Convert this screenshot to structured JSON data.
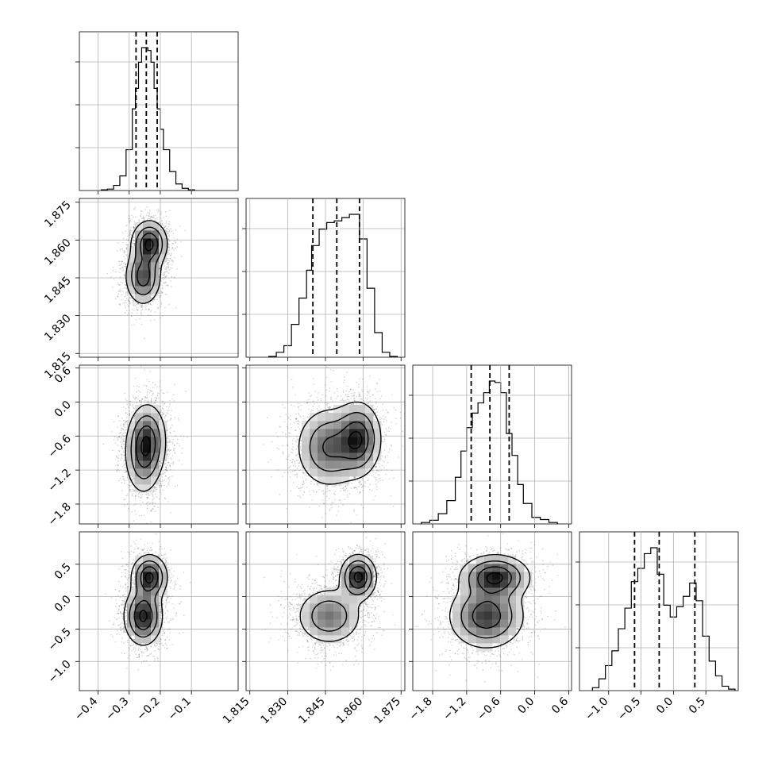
{
  "chart_data": {
    "type": "corner",
    "title": "",
    "grid": true,
    "colors": {
      "points": "#000000",
      "contour_line": "#000000",
      "density_high": "#000000",
      "density_low": "#ffffff"
    },
    "parameters": [
      {
        "name": "",
        "range": [
          -0.46,
          0.05
        ],
        "ticks": [
          -0.4,
          -0.3,
          -0.2,
          -0.1
        ],
        "tick_labels": [
          "−0.4",
          "−0.3",
          "−0.2",
          "−0.1"
        ]
      },
      {
        "name": "",
        "range": [
          1.8135,
          1.8765
        ],
        "ticks": [
          1.815,
          1.83,
          1.845,
          1.86,
          1.875
        ],
        "tick_labels": [
          "1.815",
          "1.830",
          "1.845",
          "1.860",
          "1.875"
        ]
      },
      {
        "name": "",
        "range": [
          -2.15,
          0.65
        ],
        "ticks": [
          -1.8,
          -1.2,
          -0.6,
          0.0,
          0.6
        ],
        "tick_labels": [
          "−1.8",
          "−1.2",
          "−0.6",
          "0.0",
          "0.6"
        ]
      },
      {
        "name": "",
        "range": [
          -1.45,
          1.0
        ],
        "ticks": [
          -1.0,
          -0.5,
          0.0,
          0.5
        ],
        "tick_labels": [
          "−1.0",
          "−0.5",
          "0.0",
          "0.5"
        ]
      }
    ],
    "histograms": [
      {
        "param": 0,
        "quantiles": [
          -0.278,
          -0.245,
          -0.21
        ],
        "bins": [
          {
            "x0": -0.39,
            "x1": -0.37,
            "h": 0.005
          },
          {
            "x0": -0.37,
            "x1": -0.35,
            "h": 0.01
          },
          {
            "x0": -0.35,
            "x1": -0.33,
            "h": 0.035
          },
          {
            "x0": -0.33,
            "x1": -0.31,
            "h": 0.1
          },
          {
            "x0": -0.31,
            "x1": -0.29,
            "h": 0.28
          },
          {
            "x0": -0.29,
            "x1": -0.28,
            "h": 0.56
          },
          {
            "x0": -0.28,
            "x1": -0.27,
            "h": 0.7
          },
          {
            "x0": -0.27,
            "x1": -0.26,
            "h": 0.88
          },
          {
            "x0": -0.26,
            "x1": -0.25,
            "h": 0.98
          },
          {
            "x0": -0.25,
            "x1": -0.24,
            "h": 0.98
          },
          {
            "x0": -0.24,
            "x1": -0.23,
            "h": 0.96
          },
          {
            "x0": -0.23,
            "x1": -0.22,
            "h": 0.88
          },
          {
            "x0": -0.22,
            "x1": -0.21,
            "h": 0.7
          },
          {
            "x0": -0.21,
            "x1": -0.2,
            "h": 0.56
          },
          {
            "x0": -0.2,
            "x1": -0.19,
            "h": 0.42
          },
          {
            "x0": -0.19,
            "x1": -0.17,
            "h": 0.28
          },
          {
            "x0": -0.17,
            "x1": -0.15,
            "h": 0.13
          },
          {
            "x0": -0.15,
            "x1": -0.13,
            "h": 0.045
          },
          {
            "x0": -0.13,
            "x1": -0.11,
            "h": 0.015
          },
          {
            "x0": -0.11,
            "x1": -0.09,
            "h": 0.005
          }
        ]
      },
      {
        "param": 1,
        "quantiles": [
          1.84,
          1.8495,
          1.8585
        ],
        "bins": [
          {
            "x0": 1.8225,
            "x1": 1.8255,
            "h": 0.005
          },
          {
            "x0": 1.8255,
            "x1": 1.8285,
            "h": 0.03
          },
          {
            "x0": 1.8285,
            "x1": 1.8315,
            "h": 0.07
          },
          {
            "x0": 1.8315,
            "x1": 1.8345,
            "h": 0.2
          },
          {
            "x0": 1.8345,
            "x1": 1.8375,
            "h": 0.36
          },
          {
            "x0": 1.8375,
            "x1": 1.8395,
            "h": 0.53
          },
          {
            "x0": 1.8395,
            "x1": 1.8425,
            "h": 0.68
          },
          {
            "x0": 1.8425,
            "x1": 1.8455,
            "h": 0.78
          },
          {
            "x0": 1.8455,
            "x1": 1.8485,
            "h": 0.82
          },
          {
            "x0": 1.8485,
            "x1": 1.8515,
            "h": 0.83
          },
          {
            "x0": 1.8515,
            "x1": 1.8545,
            "h": 0.85
          },
          {
            "x0": 1.8545,
            "x1": 1.8585,
            "h": 0.87
          },
          {
            "x0": 1.8585,
            "x1": 1.8615,
            "h": 0.72
          },
          {
            "x0": 1.8615,
            "x1": 1.8645,
            "h": 0.42
          },
          {
            "x0": 1.8645,
            "x1": 1.8675,
            "h": 0.15
          },
          {
            "x0": 1.8675,
            "x1": 1.8705,
            "h": 0.03
          },
          {
            "x0": 1.8705,
            "x1": 1.8735,
            "h": 0.005
          }
        ]
      },
      {
        "param": 2,
        "quantiles": [
          -1.12,
          -0.79,
          -0.45
        ],
        "bins": [
          {
            "x0": -2.0,
            "x1": -1.85,
            "h": 0.01
          },
          {
            "x0": -1.85,
            "x1": -1.7,
            "h": 0.025
          },
          {
            "x0": -1.7,
            "x1": -1.55,
            "h": 0.07
          },
          {
            "x0": -1.55,
            "x1": -1.4,
            "h": 0.16
          },
          {
            "x0": -1.4,
            "x1": -1.3,
            "h": 0.32
          },
          {
            "x0": -1.3,
            "x1": -1.2,
            "h": 0.5
          },
          {
            "x0": -1.2,
            "x1": -1.1,
            "h": 0.66
          },
          {
            "x0": -1.1,
            "x1": -1.0,
            "h": 0.76
          },
          {
            "x0": -1.0,
            "x1": -0.9,
            "h": 0.83
          },
          {
            "x0": -0.9,
            "x1": -0.8,
            "h": 0.9
          },
          {
            "x0": -0.8,
            "x1": -0.7,
            "h": 0.98
          },
          {
            "x0": -0.7,
            "x1": -0.6,
            "h": 0.97
          },
          {
            "x0": -0.6,
            "x1": -0.5,
            "h": 0.9
          },
          {
            "x0": -0.5,
            "x1": -0.4,
            "h": 0.62
          },
          {
            "x0": -0.4,
            "x1": -0.3,
            "h": 0.47
          },
          {
            "x0": -0.3,
            "x1": -0.2,
            "h": 0.27
          },
          {
            "x0": -0.2,
            "x1": -0.05,
            "h": 0.14
          },
          {
            "x0": -0.05,
            "x1": 0.1,
            "h": 0.045
          },
          {
            "x0": 0.1,
            "x1": 0.25,
            "h": 0.03
          },
          {
            "x0": 0.25,
            "x1": 0.4,
            "h": 0.01
          }
        ]
      },
      {
        "param": 3,
        "quantiles": [
          -0.6,
          -0.22,
          0.33
        ],
        "bins": [
          {
            "x0": -1.25,
            "x1": -1.15,
            "h": 0.02
          },
          {
            "x0": -1.15,
            "x1": -1.05,
            "h": 0.08
          },
          {
            "x0": -1.05,
            "x1": -0.95,
            "h": 0.17
          },
          {
            "x0": -0.95,
            "x1": -0.85,
            "h": 0.27
          },
          {
            "x0": -0.85,
            "x1": -0.75,
            "h": 0.42
          },
          {
            "x0": -0.75,
            "x1": -0.65,
            "h": 0.56
          },
          {
            "x0": -0.65,
            "x1": -0.55,
            "h": 0.74
          },
          {
            "x0": -0.55,
            "x1": -0.45,
            "h": 0.83
          },
          {
            "x0": -0.45,
            "x1": -0.35,
            "h": 0.93
          },
          {
            "x0": -0.35,
            "x1": -0.25,
            "h": 0.97
          },
          {
            "x0": -0.25,
            "x1": -0.15,
            "h": 0.79
          },
          {
            "x0": -0.15,
            "x1": -0.05,
            "h": 0.58
          },
          {
            "x0": -0.05,
            "x1": 0.05,
            "h": 0.5
          },
          {
            "x0": 0.05,
            "x1": 0.15,
            "h": 0.57
          },
          {
            "x0": 0.15,
            "x1": 0.25,
            "h": 0.64
          },
          {
            "x0": 0.25,
            "x1": 0.35,
            "h": 0.73
          },
          {
            "x0": 0.35,
            "x1": 0.45,
            "h": 0.61
          },
          {
            "x0": 0.45,
            "x1": 0.55,
            "h": 0.37
          },
          {
            "x0": 0.55,
            "x1": 0.65,
            "h": 0.2
          },
          {
            "x0": 0.65,
            "x1": 0.75,
            "h": 0.1
          },
          {
            "x0": 0.75,
            "x1": 0.85,
            "h": 0.03
          },
          {
            "x0": 0.85,
            "x1": 0.95,
            "h": 0.01
          }
        ]
      }
    ],
    "pairs": [
      {
        "x": 0,
        "y": 1,
        "components": [
          {
            "mx": -0.255,
            "my": 1.8455,
            "sx": 0.028,
            "sy": 0.0055,
            "w": 0.5
          },
          {
            "mx": -0.235,
            "my": 1.8585,
            "sx": 0.028,
            "sy": 0.0045,
            "w": 0.5
          }
        ]
      },
      {
        "x": 0,
        "y": 2,
        "components": [
          {
            "mx": -0.255,
            "my": -0.95,
            "sx": 0.03,
            "sy": 0.35,
            "w": 0.5
          },
          {
            "mx": -0.24,
            "my": -0.65,
            "sx": 0.03,
            "sy": 0.32,
            "w": 0.5
          }
        ]
      },
      {
        "x": 0,
        "y": 3,
        "components": [
          {
            "mx": -0.255,
            "my": -0.3,
            "sx": 0.03,
            "sy": 0.22,
            "w": 0.58
          },
          {
            "mx": -0.235,
            "my": 0.3,
            "sx": 0.028,
            "sy": 0.17,
            "w": 0.42
          }
        ]
      },
      {
        "x": 1,
        "y": 2,
        "components": [
          {
            "mx": 1.8465,
            "my": -0.8,
            "sx": 0.0065,
            "sy": 0.35,
            "w": 0.55
          },
          {
            "mx": 1.858,
            "my": -0.65,
            "sx": 0.0045,
            "sy": 0.32,
            "w": 0.45
          }
        ]
      },
      {
        "x": 1,
        "y": 3,
        "components": [
          {
            "mx": 1.8465,
            "my": -0.3,
            "sx": 0.0065,
            "sy": 0.22,
            "w": 0.58
          },
          {
            "mx": 1.858,
            "my": 0.3,
            "sx": 0.0035,
            "sy": 0.17,
            "w": 0.42
          }
        ]
      },
      {
        "x": 2,
        "y": 3,
        "components": [
          {
            "mx": -0.85,
            "my": -0.3,
            "sx": 0.33,
            "sy": 0.25,
            "w": 0.58
          },
          {
            "mx": -0.7,
            "my": 0.3,
            "sx": 0.3,
            "sy": 0.17,
            "w": 0.42
          }
        ]
      }
    ]
  }
}
